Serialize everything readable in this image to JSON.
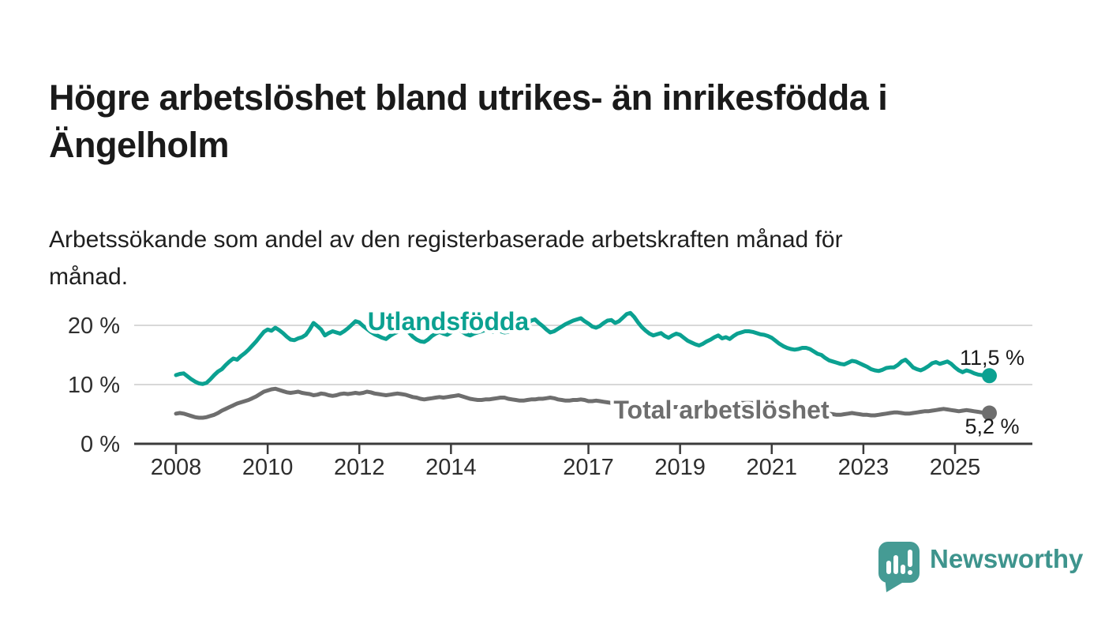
{
  "title": {
    "full": "Högre arbetslöshet bland utrikes- än inrikesfödda i Ängelholm",
    "line1": "Högre arbetslöshet bland utrikes- än inrikesfödda i",
    "line2": "Ängelholm"
  },
  "subtitle": {
    "full": "Arbetssökande som andel av den registerbaserade arbetskraften månad för månad.",
    "line1": "Arbetssökande som andel av den registerbaserade arbetskraften månad för",
    "line2": "månad."
  },
  "chart_data": {
    "type": "line",
    "title": "Högre arbetslöshet bland utrikes- än inrikesfödda i Ängelholm",
    "subtitle": "Arbetssökande som andel av den registerbaserade arbetskraften månad för månad.",
    "xlabel": "",
    "ylabel": "",
    "grid": "horizontal",
    "legend_position": "inline-labels",
    "x_axis": {
      "tick_years": [
        2008,
        2010,
        2012,
        2014,
        2017,
        2019,
        2021,
        2023,
        2025
      ],
      "start": 2008.0,
      "end": 2025.75
    },
    "y_axis": {
      "ticks": [
        {
          "value": 0,
          "label": "0 %"
        },
        {
          "value": 10,
          "label": "10 %"
        },
        {
          "value": 20,
          "label": "20 %"
        }
      ],
      "ylim": [
        0,
        25
      ]
    },
    "series": [
      {
        "name": "Utlandsfödda",
        "color": "#0ba191",
        "end_label": "11,5 %",
        "end_value": 11.5,
        "start_year": 2008,
        "points_per_year": 12,
        "values": [
          11.6,
          11.8,
          11.9,
          11.4,
          10.9,
          10.5,
          10.2,
          10.1,
          10.3,
          10.9,
          11.6,
          12.2,
          12.6,
          13.3,
          13.9,
          14.4,
          14.2,
          14.8,
          15.3,
          15.9,
          16.6,
          17.3,
          18.1,
          18.9,
          19.3,
          19.1,
          19.6,
          19.2,
          18.7,
          18.1,
          17.6,
          17.5,
          17.8,
          18.0,
          18.4,
          19.3,
          20.4,
          19.9,
          19.3,
          18.3,
          18.7,
          19.0,
          18.8,
          18.6,
          19.0,
          19.5,
          20.1,
          20.7,
          20.5,
          19.9,
          19.4,
          18.9,
          18.5,
          18.2,
          17.9,
          17.7,
          18.2,
          18.6,
          18.9,
          19.2,
          19.4,
          18.8,
          18.1,
          17.6,
          17.3,
          17.2,
          17.6,
          18.2,
          18.6,
          18.9,
          18.6,
          18.4,
          18.8,
          19.2,
          19.4,
          18.9,
          18.5,
          18.3,
          18.6,
          18.8,
          19.0,
          19.2,
          19.0,
          18.9,
          19.2,
          19.0,
          18.8,
          18.9,
          19.1,
          19.4,
          19.6,
          19.9,
          20.3,
          20.8,
          21.0,
          20.4,
          19.9,
          19.3,
          18.8,
          19.0,
          19.4,
          19.8,
          20.2,
          20.5,
          20.8,
          21.0,
          21.2,
          20.7,
          20.3,
          19.8,
          19.6,
          19.9,
          20.4,
          20.8,
          20.9,
          20.4,
          20.7,
          21.3,
          21.9,
          22.1,
          21.4,
          20.5,
          19.7,
          19.1,
          18.6,
          18.3,
          18.5,
          18.7,
          18.2,
          17.9,
          18.3,
          18.6,
          18.4,
          17.9,
          17.4,
          17.1,
          16.8,
          16.6,
          16.9,
          17.3,
          17.6,
          18.0,
          18.3,
          17.8,
          18.0,
          17.7,
          18.2,
          18.6,
          18.8,
          19.0,
          19.0,
          18.9,
          18.7,
          18.5,
          18.4,
          18.2,
          17.9,
          17.4,
          16.9,
          16.5,
          16.2,
          16.0,
          15.9,
          16.0,
          16.2,
          16.2,
          16.0,
          15.6,
          15.2,
          15.0,
          14.5,
          14.1,
          13.9,
          13.7,
          13.5,
          13.4,
          13.7,
          14.0,
          13.9,
          13.6,
          13.3,
          13.0,
          12.6,
          12.4,
          12.3,
          12.5,
          12.8,
          12.9,
          12.9,
          13.3,
          13.9,
          14.2,
          13.6,
          12.9,
          12.6,
          12.4,
          12.7,
          13.1,
          13.6,
          13.8,
          13.5,
          13.7,
          13.9,
          13.5,
          12.9,
          12.4,
          12.1,
          12.4,
          12.2,
          11.9,
          11.7,
          11.6,
          11.5,
          11.5
        ]
      },
      {
        "name": "Total arbetslöshet",
        "color": "#6e6e6e",
        "end_label": "5,2 %",
        "end_value": 5.2,
        "start_year": 2008,
        "points_per_year": 12,
        "values": [
          5.1,
          5.2,
          5.1,
          4.9,
          4.7,
          4.5,
          4.4,
          4.4,
          4.5,
          4.7,
          4.9,
          5.2,
          5.6,
          5.9,
          6.2,
          6.5,
          6.8,
          7.0,
          7.2,
          7.4,
          7.7,
          8.0,
          8.4,
          8.8,
          9.0,
          9.2,
          9.3,
          9.1,
          8.9,
          8.7,
          8.6,
          8.7,
          8.8,
          8.6,
          8.5,
          8.4,
          8.2,
          8.3,
          8.5,
          8.4,
          8.2,
          8.1,
          8.2,
          8.4,
          8.5,
          8.4,
          8.5,
          8.6,
          8.5,
          8.6,
          8.8,
          8.7,
          8.5,
          8.4,
          8.3,
          8.2,
          8.3,
          8.4,
          8.5,
          8.4,
          8.3,
          8.1,
          7.9,
          7.8,
          7.6,
          7.5,
          7.6,
          7.7,
          7.8,
          7.9,
          7.8,
          7.9,
          8.0,
          8.1,
          8.2,
          8.0,
          7.8,
          7.6,
          7.5,
          7.4,
          7.4,
          7.5,
          7.5,
          7.6,
          7.7,
          7.8,
          7.8,
          7.6,
          7.5,
          7.4,
          7.3,
          7.3,
          7.4,
          7.5,
          7.5,
          7.6,
          7.6,
          7.7,
          7.8,
          7.7,
          7.5,
          7.4,
          7.3,
          7.3,
          7.4,
          7.4,
          7.5,
          7.4,
          7.2,
          7.2,
          7.3,
          7.2,
          7.1,
          7.0,
          6.9,
          6.8,
          6.8,
          6.7,
          6.7,
          6.6,
          6.6,
          6.5,
          6.5,
          6.4,
          6.4,
          6.3,
          6.3,
          6.3,
          6.2,
          6.2,
          6.2,
          6.2,
          6.2,
          6.1,
          6.1,
          6.1,
          6.1,
          6.1,
          6.2,
          6.2,
          6.3,
          6.3,
          6.4,
          6.4,
          6.4,
          6.5,
          6.6,
          6.8,
          6.9,
          6.9,
          6.9,
          6.9,
          6.8,
          6.8,
          6.7,
          6.7,
          6.6,
          6.5,
          6.4,
          6.3,
          6.2,
          6.1,
          6.0,
          5.9,
          5.8,
          5.7,
          5.6,
          5.5,
          5.4,
          5.3,
          5.2,
          5.1,
          5.0,
          4.9,
          4.9,
          5.0,
          5.1,
          5.2,
          5.1,
          5.0,
          4.9,
          4.9,
          4.8,
          4.8,
          4.9,
          5.0,
          5.1,
          5.2,
          5.3,
          5.3,
          5.2,
          5.1,
          5.1,
          5.2,
          5.3,
          5.4,
          5.5,
          5.5,
          5.6,
          5.7,
          5.8,
          5.9,
          5.8,
          5.7,
          5.6,
          5.5,
          5.6,
          5.7,
          5.6,
          5.5,
          5.4,
          5.3,
          5.2,
          5.2
        ]
      }
    ]
  },
  "logo": {
    "text": "Newsworthy",
    "icon": "newsworthy-speech-bubble-bar-chart-icon",
    "text_color": "#3e948d",
    "icon_color": "#459b94"
  }
}
